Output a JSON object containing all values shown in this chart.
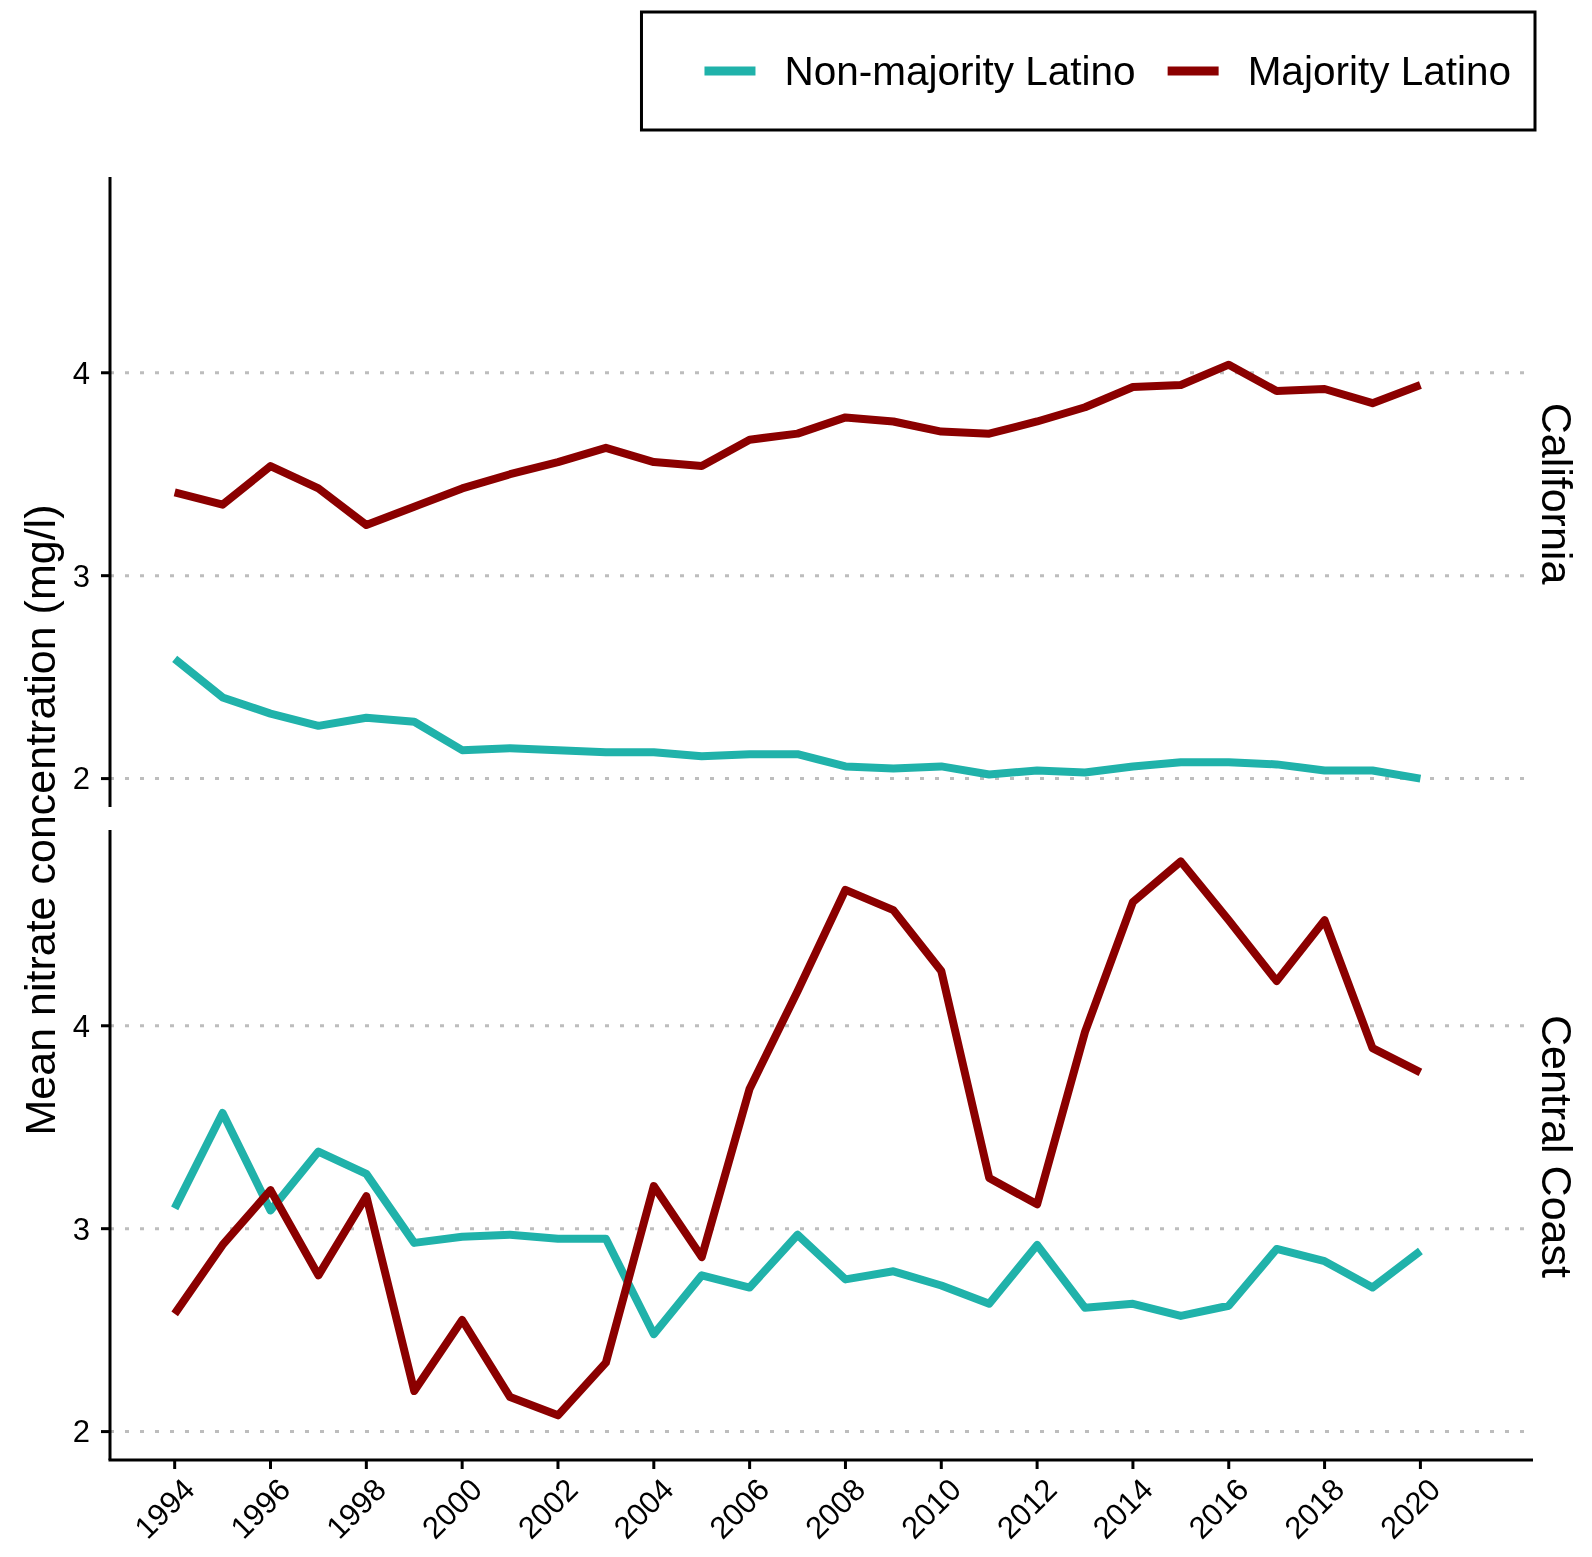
{
  "chart_data": [
    {
      "type": "line",
      "title": "California",
      "ylabel": "Mean nitrate concentration (mg/l)",
      "x": [
        1994,
        1995,
        1996,
        1997,
        1998,
        1999,
        2000,
        2001,
        2002,
        2003,
        2004,
        2005,
        2006,
        2007,
        2008,
        2009,
        2010,
        2011,
        2012,
        2013,
        2014,
        2015,
        2016,
        2017,
        2018,
        2019,
        2020
      ],
      "series": [
        {
          "name": "Non-majority Latino",
          "color": "#20b2aa",
          "values": [
            2.59,
            2.4,
            2.32,
            2.26,
            2.3,
            2.28,
            2.14,
            2.15,
            2.14,
            2.13,
            2.13,
            2.11,
            2.12,
            2.12,
            2.06,
            2.05,
            2.06,
            2.02,
            2.04,
            2.03,
            2.06,
            2.08,
            2.08,
            2.07,
            2.04,
            2.04,
            2.0
          ]
        },
        {
          "name": "Majority Latino",
          "color": "#8b0000",
          "values": [
            3.41,
            3.35,
            3.54,
            3.43,
            3.25,
            3.34,
            3.43,
            3.5,
            3.56,
            3.63,
            3.56,
            3.54,
            3.67,
            3.7,
            3.78,
            3.76,
            3.71,
            3.7,
            3.76,
            3.83,
            3.93,
            3.94,
            4.04,
            3.91,
            3.92,
            3.85,
            3.94
          ]
        }
      ],
      "xlim": [
        1992.65,
        2022.35
      ],
      "ylim": [
        1.86,
        4.95
      ],
      "yticks": [
        2,
        3,
        4
      ],
      "tick_labels": "y",
      "grid": "y",
      "legend": "top right",
      "line_style": "solid"
    },
    {
      "type": "line",
      "title": "Central Coast",
      "x": [
        1994,
        1995,
        1996,
        1997,
        1998,
        1999,
        2000,
        2001,
        2002,
        2003,
        2004,
        2005,
        2006,
        2007,
        2008,
        2009,
        2010,
        2011,
        2012,
        2013,
        2014,
        2015,
        2016,
        2017,
        2018,
        2019,
        2020
      ],
      "series": [
        {
          "color": "#20b2aa",
          "values": [
            3.1,
            3.57,
            3.09,
            3.38,
            3.27,
            2.93,
            2.96,
            2.97,
            2.95,
            2.95,
            2.48,
            2.77,
            2.71,
            2.97,
            2.75,
            2.79,
            2.72,
            2.63,
            2.92,
            2.61,
            2.63,
            2.57,
            2.62,
            2.9,
            2.84,
            2.71,
            2.89
          ]
        },
        {
          "color": "#8b0000",
          "values": [
            2.58,
            2.92,
            3.19,
            2.77,
            3.16,
            2.2,
            2.55,
            2.17,
            2.08,
            2.34,
            3.21,
            2.86,
            3.69,
            4.17,
            4.67,
            4.57,
            4.27,
            3.25,
            3.12,
            3.97,
            4.61,
            4.81,
            4.52,
            4.22,
            4.52,
            3.89,
            3.77
          ]
        }
      ],
      "xlim": [
        1992.65,
        2022.35
      ],
      "ylim": [
        1.86,
        4.95
      ],
      "xticks": [
        1994,
        1996,
        1998,
        2000,
        2002,
        2004,
        2006,
        2008,
        2010,
        2012,
        2014,
        2016,
        2018,
        2020
      ],
      "yticks": [
        2,
        3,
        4
      ],
      "grid": "y",
      "line_style": "solid"
    }
  ]
}
